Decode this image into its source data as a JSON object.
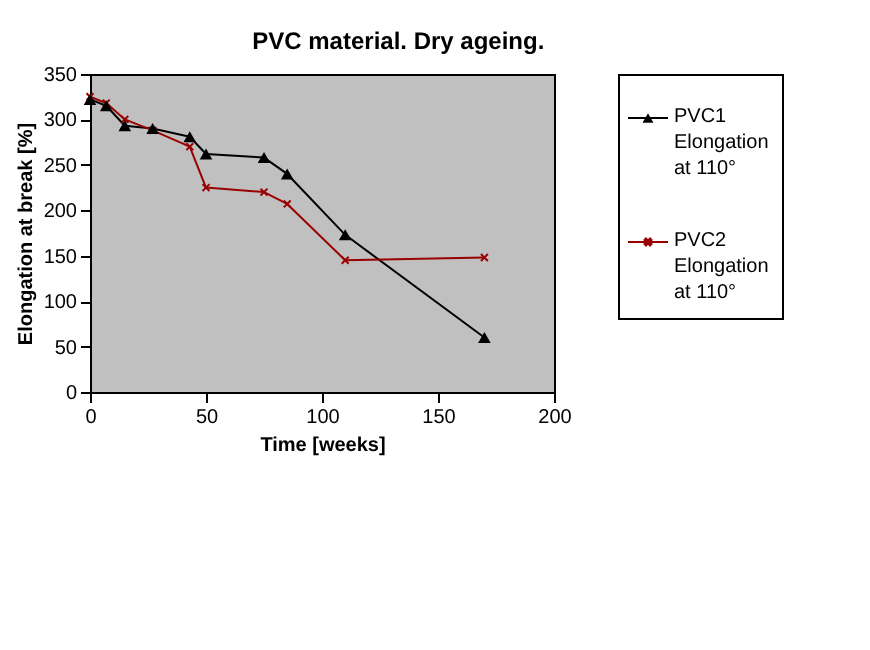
{
  "chart_data": {
    "type": "line",
    "title": "PVC material.  Dry ageing.",
    "xlabel": "Time [weeks]",
    "ylabel": "Elongation at break [%]",
    "xlim": [
      0,
      200
    ],
    "xticks": [
      0,
      50,
      100,
      150,
      200
    ],
    "ylim": [
      0,
      350
    ],
    "yticks": [
      0,
      50,
      100,
      150,
      200,
      250,
      300,
      350
    ],
    "grid": false,
    "legend": "right",
    "series": [
      {
        "name": "PVC1 Elongation at 110°",
        "color": "#000000",
        "marker": "triangle",
        "x": [
          0,
          7,
          15,
          27,
          43,
          50,
          75,
          85,
          110,
          170
        ],
        "values": [
          322,
          315,
          293,
          290,
          281,
          262,
          258,
          240,
          173,
          60
        ]
      },
      {
        "name": "PVC2 Elongation at 110°",
        "color": "#990000",
        "marker": "cross",
        "x": [
          0,
          7,
          15,
          27,
          43,
          50,
          75,
          85,
          110,
          170
        ],
        "values": [
          325,
          318,
          300,
          288,
          270,
          225,
          220,
          207,
          145,
          148
        ]
      }
    ]
  }
}
